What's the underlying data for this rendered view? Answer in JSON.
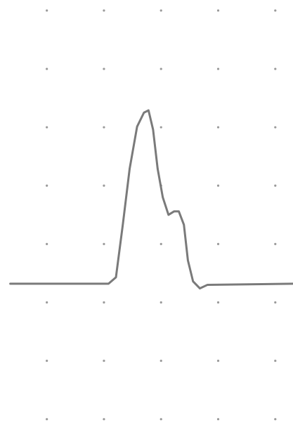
{
  "chart_data": {
    "type": "line",
    "x": [
      -0.64,
      1.08,
      1.21,
      1.33,
      1.45,
      1.58,
      1.7,
      1.78,
      1.86,
      1.94,
      2.03,
      2.13,
      2.23,
      2.31,
      2.4,
      2.47,
      2.56,
      2.68,
      2.81,
      4.31
    ],
    "values": [
      2.32,
      2.32,
      2.43,
      3.33,
      4.29,
      5.01,
      5.25,
      5.29,
      4.96,
      4.29,
      3.8,
      3.5,
      3.56,
      3.56,
      3.33,
      2.72,
      2.36,
      2.24,
      2.3,
      2.32
    ],
    "color": "#7a7a7a",
    "xlim": [
      -0.82,
      4.31
    ],
    "ylim": [
      -0.1,
      7.18
    ],
    "xticks": [
      0,
      1,
      2,
      3,
      4
    ],
    "yticks": [
      0,
      1,
      2,
      3,
      4,
      5,
      6,
      7
    ],
    "grid": true
  }
}
